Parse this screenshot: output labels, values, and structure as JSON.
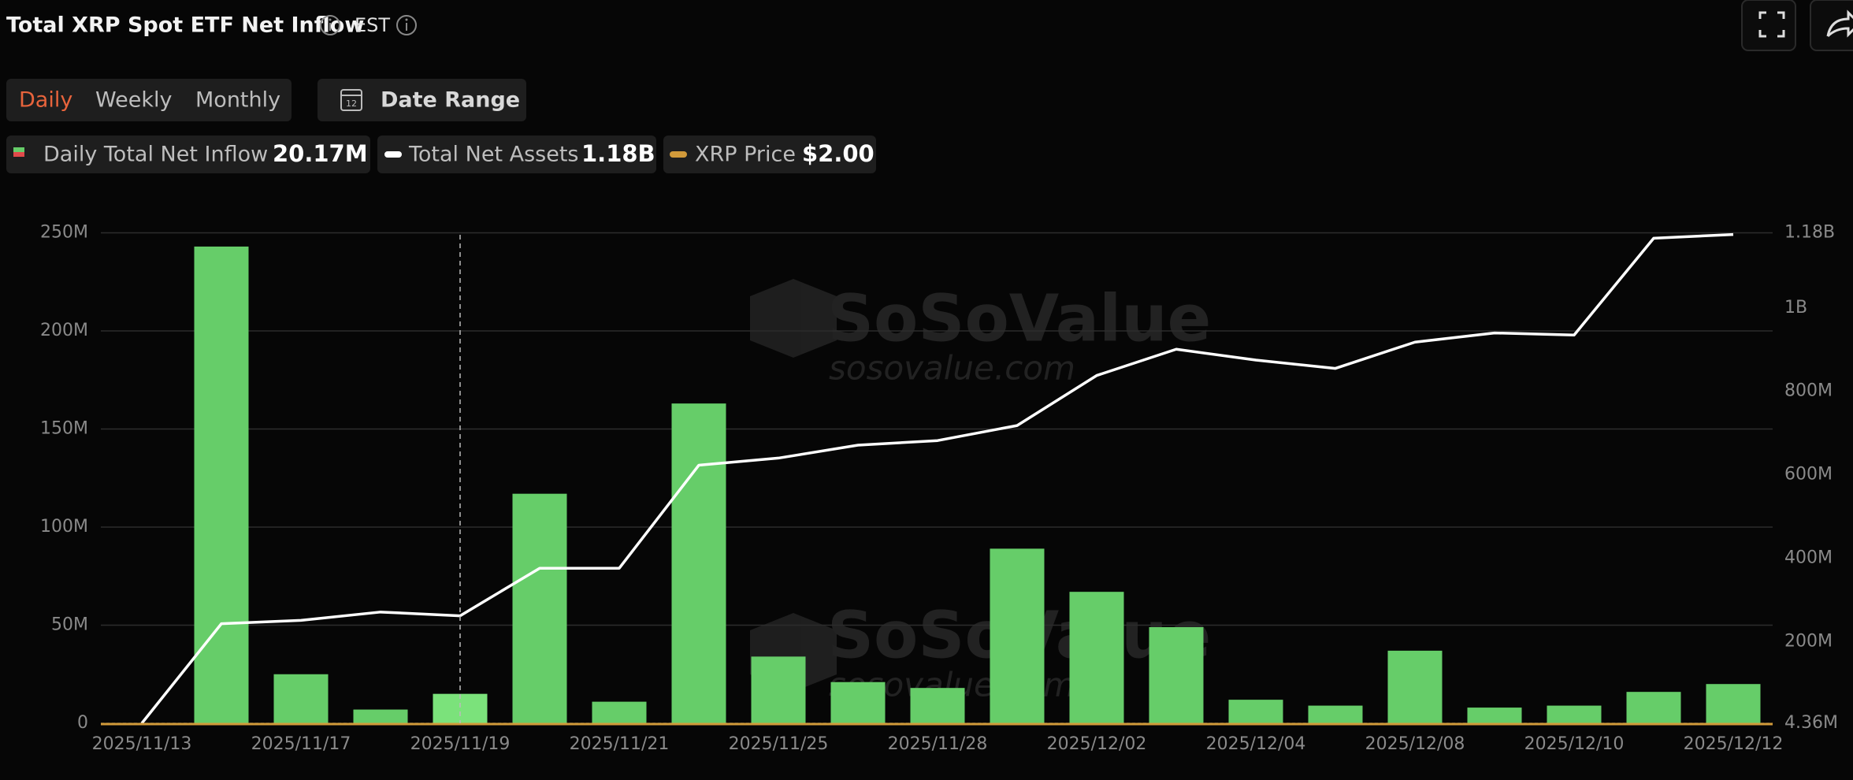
{
  "header": {
    "title": "Total XRP Spot ETF Net Inflow",
    "timezone": "EST"
  },
  "tabs": [
    "Daily",
    "Weekly",
    "Monthly"
  ],
  "date_range": "Date Range",
  "legend": [
    {
      "name": "Daily Total Net Inflow",
      "value": "20.17M"
    },
    {
      "name": "Total Net Assets",
      "value": "1.18B"
    },
    {
      "name": "XRP Price",
      "value": "$2.00"
    }
  ],
  "watermark": {
    "brand": "SoSoValue",
    "site": "sosovalue.com"
  },
  "chart_data": {
    "type": "bar",
    "categories": [
      "2025/11/13",
      null,
      "2025/11/17",
      null,
      "2025/11/19",
      null,
      "2025/11/21",
      null,
      "2025/11/25",
      null,
      "2025/11/28",
      null,
      "2025/12/02",
      null,
      "2025/12/04",
      null,
      "2025/12/08",
      null,
      "2025/12/10",
      null,
      "2025/12/12"
    ],
    "series": [
      {
        "name": "Daily Total Net Inflow",
        "color": "#66cd69",
        "values": [
          0,
          243,
          25,
          7,
          15,
          117,
          11,
          163,
          34,
          21,
          18,
          89,
          67,
          49,
          12,
          9,
          37,
          8,
          9,
          16,
          20
        ]
      },
      {
        "name": "Total Net Assets",
        "type": "line",
        "axis": "y2",
        "color": "#ffffff",
        "values": [
          4.36,
          243,
          251,
          271,
          262,
          376,
          376,
          623,
          640,
          671,
          682,
          718,
          838,
          901,
          875,
          855,
          918,
          940,
          935,
          1167,
          1176
        ]
      }
    ],
    "ylim": [
      0,
      250
    ],
    "yticks": [
      {
        "value": 0,
        "label": "0"
      },
      {
        "value": 50,
        "label": "50M"
      },
      {
        "value": 100,
        "label": "100M"
      },
      {
        "value": 150,
        "label": "150M"
      },
      {
        "value": 200,
        "label": "200M"
      },
      {
        "value": 250,
        "label": "250M"
      }
    ],
    "y2lim": [
      4.36,
      1180
    ],
    "y2ticks": [
      {
        "value": 4.36,
        "label": "4.36M"
      },
      {
        "value": 200,
        "label": "200M"
      },
      {
        "value": 400,
        "label": "400M"
      },
      {
        "value": 600,
        "label": "600M"
      },
      {
        "value": 800,
        "label": "800M"
      },
      {
        "value": 1000,
        "label": "1B"
      },
      {
        "value": 1180,
        "label": "1.18B"
      }
    ],
    "grid": true
  }
}
